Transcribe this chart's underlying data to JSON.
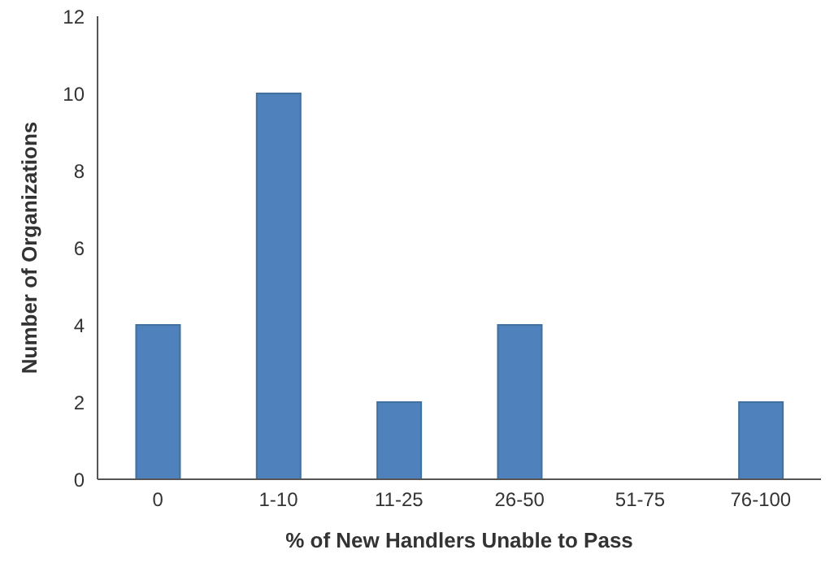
{
  "chart_data": {
    "type": "bar",
    "xlabel": "% of New Handlers Unable to Pass",
    "ylabel": "Number of Organizations",
    "categories": [
      "0",
      "1-10",
      "11-25",
      "26-50",
      "51-75",
      "76-100"
    ],
    "values": [
      4,
      10,
      2,
      4,
      0,
      2
    ],
    "color": "#4f81bd",
    "ylim": [
      0,
      12
    ],
    "yticks": [
      0,
      2,
      4,
      6,
      8,
      10,
      12
    ],
    "grid": false,
    "legend": false
  }
}
